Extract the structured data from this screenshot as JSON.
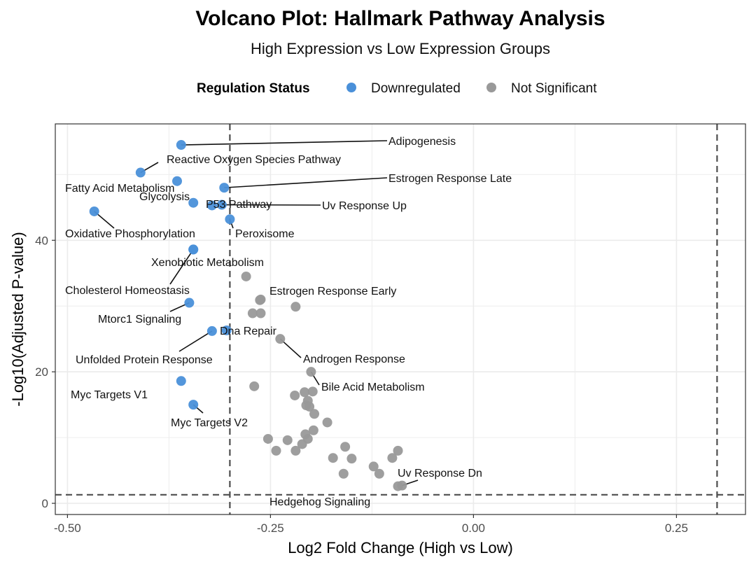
{
  "chart_data": {
    "type": "scatter",
    "title": "Volcano Plot: Hallmark Pathway Analysis",
    "subtitle": "High Expression vs Low Expression Groups",
    "xlabel": "Log2 Fold Change (High vs Low)",
    "ylabel": "-Log10(Adjusted P-value)",
    "xlim": [
      -0.515,
      0.335
    ],
    "ylim": [
      -1.7,
      57.7
    ],
    "x_ticks": [
      -0.5,
      -0.25,
      0,
      0.25
    ],
    "x_tick_labels": [
      "-0.50",
      "-0.25",
      "0.00",
      "0.25"
    ],
    "y_ticks": [
      0,
      20,
      40
    ],
    "y_tick_labels": [
      "0",
      "20",
      "40"
    ],
    "thresholds": {
      "fold_change": [
        -0.3,
        0.3
      ],
      "neg_log10_padj": 1.3
    },
    "legend": {
      "title": "Regulation Status",
      "position": "top",
      "entries": [
        {
          "label": "Downregulated",
          "color": "#4A90D9"
        },
        {
          "label": "Not Significant",
          "color": "#999999"
        }
      ]
    },
    "colors": {
      "Downregulated": "#4A90D9",
      "Not Significant": "#999999"
    },
    "points": [
      {
        "name": "Adipogenesis",
        "x": -0.36,
        "y": 54.5,
        "status": "Downregulated",
        "label": "Adipogenesis"
      },
      {
        "name": "Reactive Oxygen Species Pathway",
        "x": -0.41,
        "y": 50.3,
        "status": "Downregulated",
        "label": "Reactive Oxygen Species Pathway"
      },
      {
        "name": "Fatty Acid Metabolism",
        "x": -0.365,
        "y": 49.0,
        "status": "Downregulated",
        "label": "Fatty Acid Metabolism"
      },
      {
        "name": "Estrogen Response Late",
        "x": -0.307,
        "y": 48.0,
        "status": "Downregulated",
        "label": "Estrogen Response Late"
      },
      {
        "name": "Glycolysis",
        "x": -0.345,
        "y": 45.7,
        "status": "Downregulated",
        "label": "Glycolysis"
      },
      {
        "name": "P53 Pathway",
        "x": -0.322,
        "y": 45.3,
        "status": "Downregulated",
        "label": "P53 Pathway"
      },
      {
        "name": "Uv Response Up",
        "x": -0.31,
        "y": 45.4,
        "status": "Downregulated",
        "label": "Uv Response Up"
      },
      {
        "name": "Oxidative Phosphorylation",
        "x": -0.467,
        "y": 44.4,
        "status": "Downregulated",
        "label": "Oxidative Phosphorylation"
      },
      {
        "name": "Peroxisome",
        "x": -0.3,
        "y": 43.2,
        "status": "Downregulated",
        "label": "Peroxisome"
      },
      {
        "name": "Xenobiotic Metabolism",
        "x": -0.345,
        "y": 38.6,
        "status": "Downregulated",
        "label": "Xenobiotic Metabolism"
      },
      {
        "name": "Cholesterol Homeostasis",
        "x": -0.345,
        "y": 38.6,
        "status": "Downregulated",
        "label": "Cholesterol Homeostasis"
      },
      {
        "name": "Mtorc1 Signaling",
        "x": -0.35,
        "y": 30.5,
        "status": "Downregulated",
        "label": "Mtorc1 Signaling"
      },
      {
        "name": "Unfolded Protein Response",
        "x": -0.322,
        "y": 26.2,
        "status": "Downregulated",
        "label": "Unfolded Protein Response"
      },
      {
        "name": "Dna Repair",
        "x": -0.304,
        "y": 26.3,
        "status": "Downregulated",
        "label": "Dna Repair"
      },
      {
        "name": "Myc Targets V1",
        "x": -0.36,
        "y": 18.6,
        "status": "Downregulated",
        "label": "Myc Targets V1"
      },
      {
        "name": "Myc Targets V2",
        "x": -0.345,
        "y": 15.0,
        "status": "Downregulated",
        "label": "Myc Targets V2"
      },
      {
        "name": "Estrogen Response Early",
        "x": -0.263,
        "y": 30.9,
        "status": "Not Significant",
        "label": "Estrogen Response Early"
      },
      {
        "name": "Androgen Response",
        "x": -0.238,
        "y": 25.0,
        "status": "Not Significant",
        "label": "Androgen Response"
      },
      {
        "name": "Bile Acid Metabolism",
        "x": -0.2,
        "y": 20.0,
        "status": "Not Significant",
        "label": "Bile Acid Metabolism"
      },
      {
        "name": "Uv Response Dn",
        "x": -0.088,
        "y": 2.7,
        "status": "Not Significant",
        "label": "Uv Response Dn"
      },
      {
        "name": "Hedgehog Signaling",
        "x": -0.093,
        "y": 2.6,
        "status": "Not Significant",
        "label": "Hedgehog Signaling"
      },
      {
        "name": "",
        "x": -0.28,
        "y": 34.5,
        "status": "Not Significant",
        "label": ""
      },
      {
        "name": "",
        "x": -0.262,
        "y": 31.0,
        "status": "Not Significant",
        "label": ""
      },
      {
        "name": "",
        "x": -0.272,
        "y": 28.9,
        "status": "Not Significant",
        "label": ""
      },
      {
        "name": "",
        "x": -0.262,
        "y": 28.9,
        "status": "Not Significant",
        "label": ""
      },
      {
        "name": "",
        "x": -0.219,
        "y": 29.9,
        "status": "Not Significant",
        "label": ""
      },
      {
        "name": "",
        "x": -0.27,
        "y": 17.8,
        "status": "Not Significant",
        "label": ""
      },
      {
        "name": "",
        "x": -0.22,
        "y": 16.4,
        "status": "Not Significant",
        "label": ""
      },
      {
        "name": "",
        "x": -0.208,
        "y": 16.9,
        "status": "Not Significant",
        "label": ""
      },
      {
        "name": "",
        "x": -0.198,
        "y": 17.0,
        "status": "Not Significant",
        "label": ""
      },
      {
        "name": "",
        "x": -0.204,
        "y": 15.6,
        "status": "Not Significant",
        "label": ""
      },
      {
        "name": "",
        "x": -0.206,
        "y": 14.9,
        "status": "Not Significant",
        "label": ""
      },
      {
        "name": "",
        "x": -0.202,
        "y": 14.7,
        "status": "Not Significant",
        "label": ""
      },
      {
        "name": "",
        "x": -0.196,
        "y": 13.6,
        "status": "Not Significant",
        "label": ""
      },
      {
        "name": "",
        "x": -0.18,
        "y": 12.3,
        "status": "Not Significant",
        "label": ""
      },
      {
        "name": "",
        "x": -0.197,
        "y": 11.1,
        "status": "Not Significant",
        "label": ""
      },
      {
        "name": "",
        "x": -0.207,
        "y": 10.5,
        "status": "Not Significant",
        "label": ""
      },
      {
        "name": "",
        "x": -0.204,
        "y": 9.8,
        "status": "Not Significant",
        "label": ""
      },
      {
        "name": "",
        "x": -0.229,
        "y": 9.6,
        "status": "Not Significant",
        "label": ""
      },
      {
        "name": "",
        "x": -0.253,
        "y": 9.8,
        "status": "Not Significant",
        "label": ""
      },
      {
        "name": "",
        "x": -0.211,
        "y": 9.0,
        "status": "Not Significant",
        "label": ""
      },
      {
        "name": "",
        "x": -0.158,
        "y": 8.6,
        "status": "Not Significant",
        "label": ""
      },
      {
        "name": "",
        "x": -0.243,
        "y": 8.0,
        "status": "Not Significant",
        "label": ""
      },
      {
        "name": "",
        "x": -0.219,
        "y": 8.0,
        "status": "Not Significant",
        "label": ""
      },
      {
        "name": "",
        "x": -0.093,
        "y": 8.0,
        "status": "Not Significant",
        "label": ""
      },
      {
        "name": "",
        "x": -0.173,
        "y": 6.9,
        "status": "Not Significant",
        "label": ""
      },
      {
        "name": "",
        "x": -0.15,
        "y": 6.8,
        "status": "Not Significant",
        "label": ""
      },
      {
        "name": "",
        "x": -0.1,
        "y": 6.9,
        "status": "Not Significant",
        "label": ""
      },
      {
        "name": "",
        "x": -0.123,
        "y": 5.6,
        "status": "Not Significant",
        "label": ""
      },
      {
        "name": "",
        "x": -0.116,
        "y": 4.5,
        "status": "Not Significant",
        "label": ""
      },
      {
        "name": "",
        "x": -0.16,
        "y": 4.5,
        "status": "Not Significant",
        "label": ""
      }
    ]
  }
}
